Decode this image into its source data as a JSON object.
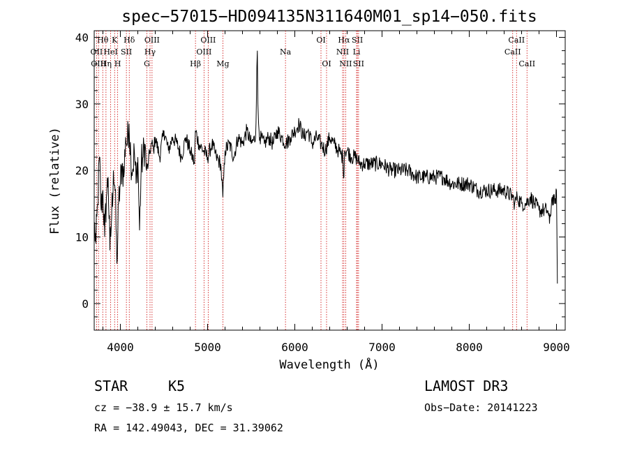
{
  "chart_data": {
    "type": "line",
    "title": "spec−57015−HD094135N311640M01_sp14−050.fits",
    "xlabel": "Wavelength (Å)",
    "ylabel": "Flux (relative)",
    "xlim": [
      3700,
      9100
    ],
    "ylim": [
      -4,
      41
    ],
    "xticks": [
      4000,
      5000,
      6000,
      7000,
      8000,
      9000
    ],
    "yticks": [
      0,
      10,
      20,
      30,
      40
    ],
    "grid": false,
    "series": [
      {
        "name": "spectrum",
        "x": [
          3700,
          3720,
          3740,
          3760,
          3780,
          3800,
          3820,
          3840,
          3860,
          3880,
          3900,
          3920,
          3940,
          3960,
          3980,
          4000,
          4020,
          4040,
          4060,
          4080,
          4100,
          4120,
          4140,
          4160,
          4180,
          4200,
          4220,
          4240,
          4260,
          4280,
          4300,
          4320,
          4340,
          4360,
          4380,
          4400,
          4450,
          4500,
          4550,
          4600,
          4650,
          4700,
          4750,
          4800,
          4850,
          4860,
          4900,
          4950,
          5000,
          5050,
          5100,
          5150,
          5175,
          5200,
          5250,
          5300,
          5350,
          5400,
          5450,
          5500,
          5550,
          5570,
          5577,
          5585,
          5600,
          5650,
          5700,
          5750,
          5800,
          5850,
          5900,
          5950,
          6000,
          6050,
          6100,
          6150,
          6200,
          6250,
          6300,
          6350,
          6400,
          6450,
          6500,
          6550,
          6563,
          6570,
          6600,
          6650,
          6700,
          6750,
          6800,
          6900,
          7000,
          7100,
          7200,
          7300,
          7400,
          7500,
          7600,
          7700,
          7800,
          7900,
          8000,
          8100,
          8200,
          8300,
          8400,
          8500,
          8520,
          8550,
          8600,
          8650,
          8700,
          8750,
          8800,
          8850,
          8900,
          8920,
          8950,
          8980,
          9000,
          9010
        ],
        "y": [
          12,
          9,
          15,
          22,
          14,
          17,
          10,
          16,
          19,
          8,
          13,
          20,
          17,
          6,
          15,
          18,
          21,
          19,
          25,
          24,
          27,
          22,
          20,
          23,
          18,
          22,
          11,
          21,
          22,
          24,
          20,
          21,
          23,
          24,
          23,
          25,
          22,
          26,
          23,
          25,
          24,
          22,
          25,
          23,
          21,
          26,
          24,
          23,
          22,
          24,
          22,
          21,
          16,
          23,
          24,
          22,
          25,
          24,
          26,
          24,
          25,
          38,
          30,
          27,
          25,
          24,
          25,
          24,
          26,
          25,
          24,
          25,
          26,
          27,
          25,
          26,
          24,
          25,
          24,
          23,
          25,
          24,
          23,
          22,
          19,
          23,
          23,
          22,
          22,
          21,
          21,
          21,
          21,
          20,
          20,
          20,
          19,
          19,
          19,
          19,
          18,
          18,
          18,
          17,
          17,
          17,
          17,
          16,
          15,
          16,
          15,
          15,
          16,
          15,
          14,
          14,
          14,
          12,
          16,
          15,
          17,
          3
        ]
      }
    ],
    "emission_lines": [
      {
        "label": "Hθ",
        "wl": 3798,
        "row": 1
      },
      {
        "label": "OII",
        "wl": 3727,
        "row": 2
      },
      {
        "label": "OIII",
        "wl": 3750,
        "row": 3
      },
      {
        "label": "HeI",
        "wl": 3889,
        "row": 2
      },
      {
        "label": "Hη",
        "wl": 3835,
        "row": 3
      },
      {
        "label": "K",
        "wl": 3934,
        "row": 1
      },
      {
        "label": "H",
        "wl": 3969,
        "row": 3
      },
      {
        "label": "SII",
        "wl": 4069,
        "row": 2
      },
      {
        "label": "Hδ",
        "wl": 4102,
        "row": 1
      },
      {
        "label": "OIII",
        "wl": 4363,
        "row": 1
      },
      {
        "label": "Hγ",
        "wl": 4340,
        "row": 2
      },
      {
        "label": "G",
        "wl": 4304,
        "row": 3
      },
      {
        "label": "OIII",
        "wl": 5007,
        "row": 1
      },
      {
        "label": "OIII",
        "wl": 4959,
        "row": 2
      },
      {
        "label": "Hβ",
        "wl": 4861,
        "row": 3
      },
      {
        "label": "Mg",
        "wl": 5175,
        "row": 3
      },
      {
        "label": "Na",
        "wl": 5893,
        "row": 2
      },
      {
        "label": "OI",
        "wl": 6300,
        "row": 1
      },
      {
        "label": "OI",
        "wl": 6364,
        "row": 3
      },
      {
        "label": "Hα",
        "wl": 6563,
        "row": 1
      },
      {
        "label": "NII",
        "wl": 6548,
        "row": 2
      },
      {
        "label": "NII",
        "wl": 6583,
        "row": 3
      },
      {
        "label": "SII",
        "wl": 6717,
        "row": 1
      },
      {
        "label": "Li",
        "wl": 6708,
        "row": 2
      },
      {
        "label": "SII",
        "wl": 6731,
        "row": 3
      },
      {
        "label": "CaII",
        "wl": 8542,
        "row": 1
      },
      {
        "label": "CaII",
        "wl": 8498,
        "row": 2
      },
      {
        "label": "CaII",
        "wl": 8662,
        "row": 3
      }
    ]
  },
  "footer": {
    "class": "STAR",
    "subclass": "K5",
    "survey": "LAMOST DR3",
    "cz": "cz = −38.9 ± 15.7 km/s",
    "obs_date": "Obs−Date: 20141223",
    "coords": "RA = 142.49043, DEC =  31.39062"
  }
}
